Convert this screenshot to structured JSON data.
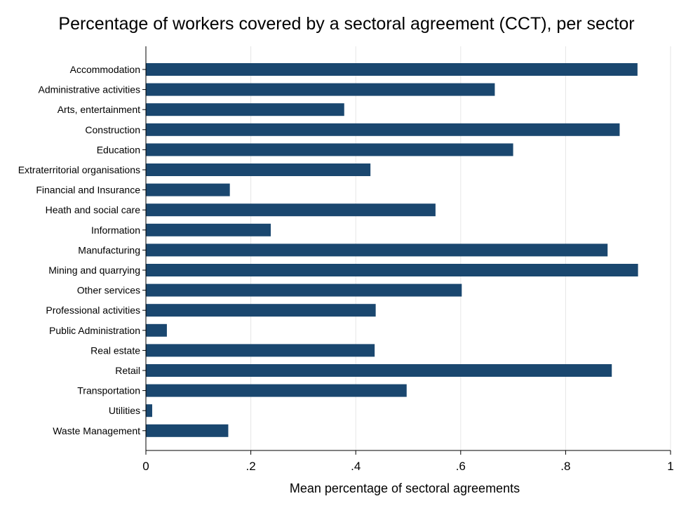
{
  "chart_data": {
    "type": "bar",
    "orientation": "horizontal",
    "title": "Percentage of workers covered by a sectoral agreement (CCT), per sector",
    "xlabel": "Mean percentage of sectoral agreements",
    "ylabel": "",
    "xlim": [
      0,
      1
    ],
    "x_ticks": [
      0,
      0.2,
      0.4,
      0.6,
      0.8,
      1
    ],
    "x_tick_labels": [
      "0",
      ".2",
      ".4",
      ".6",
      ".8",
      "1"
    ],
    "grid": true,
    "bar_color": "#1a476f",
    "categories": [
      "Accommodation",
      "Administrative activities",
      "Arts, entertainment",
      "Construction",
      "Education",
      "Extraterritorial organisations",
      "Financial and Insurance",
      "Heath and social care",
      "Information",
      "Manufacturing",
      "Mining and quarrying",
      "Other services",
      "Professional activities",
      "Public Administration",
      "Real estate",
      "Retail",
      "Transportation",
      "Utilities",
      "Waste Management"
    ],
    "values": [
      0.937,
      0.665,
      0.378,
      0.903,
      0.7,
      0.428,
      0.16,
      0.552,
      0.238,
      0.88,
      0.938,
      0.602,
      0.438,
      0.04,
      0.436,
      0.888,
      0.497,
      0.012,
      0.157
    ]
  }
}
